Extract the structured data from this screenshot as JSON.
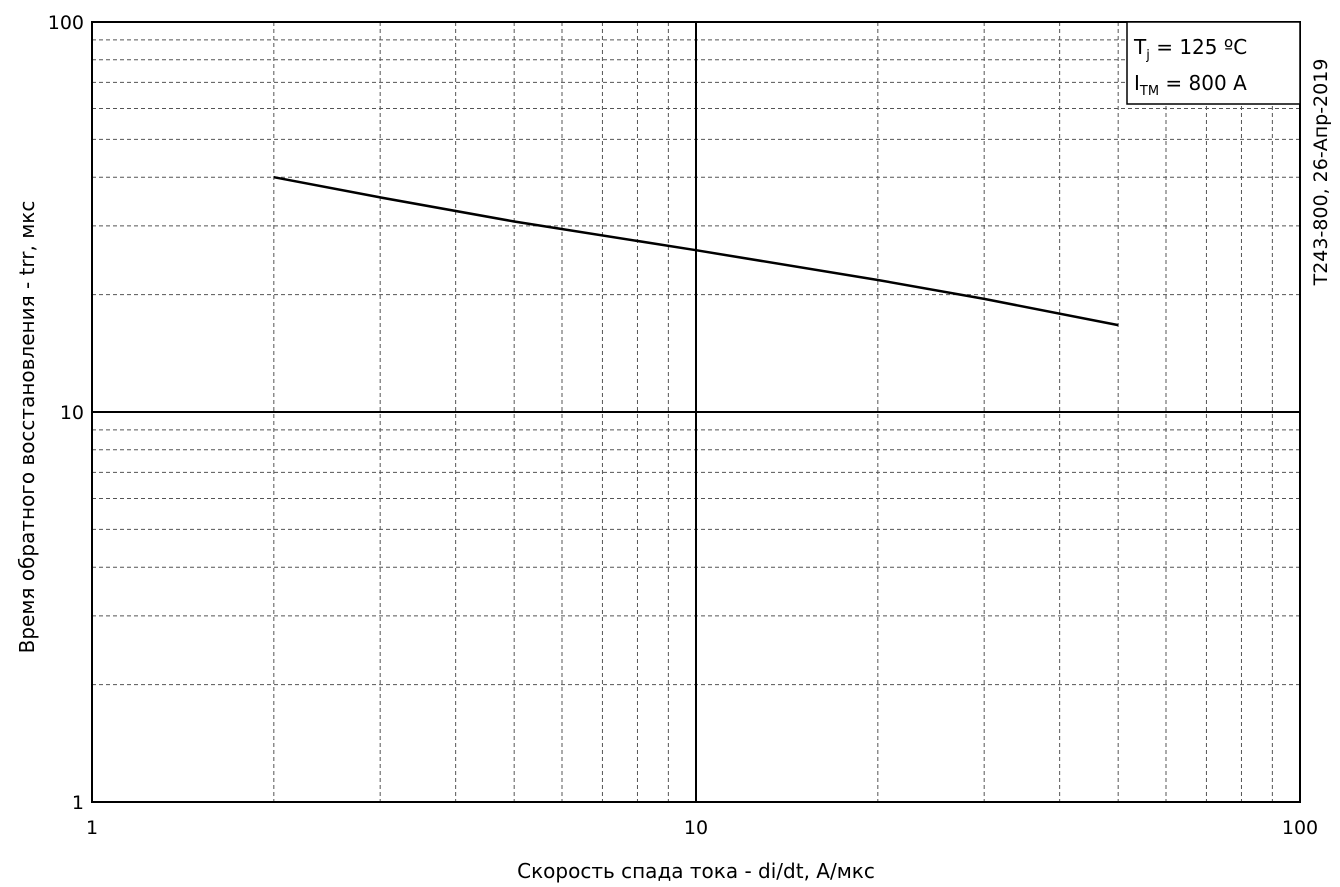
{
  "chart_data": {
    "type": "line",
    "xscale": "log",
    "yscale": "log",
    "xlim": [
      1,
      100
    ],
    "ylim": [
      1,
      100
    ],
    "xlabel": "Скорость спада тока - di/dt, А/мкс",
    "ylabel": "Время обратного восстановления - trr, мкс",
    "x_ticks": [
      "1",
      "10",
      "100"
    ],
    "y_ticks": [
      "1",
      "10",
      "100"
    ],
    "grid": true,
    "series": [
      {
        "x": [
          2,
          3,
          5,
          10,
          20,
          30,
          50
        ],
        "y": [
          40,
          35.5,
          30.8,
          26,
          21.8,
          19.5,
          16.7
        ]
      }
    ],
    "annotations": {
      "conditions": [
        {
          "main": "T",
          "sub": "j",
          "rest": " = 125 ºC"
        },
        {
          "main": "I",
          "sub": "TM",
          "rest": " = 800 A"
        }
      ],
      "side_note": "Т243-800, 26-Апр-2019"
    }
  }
}
